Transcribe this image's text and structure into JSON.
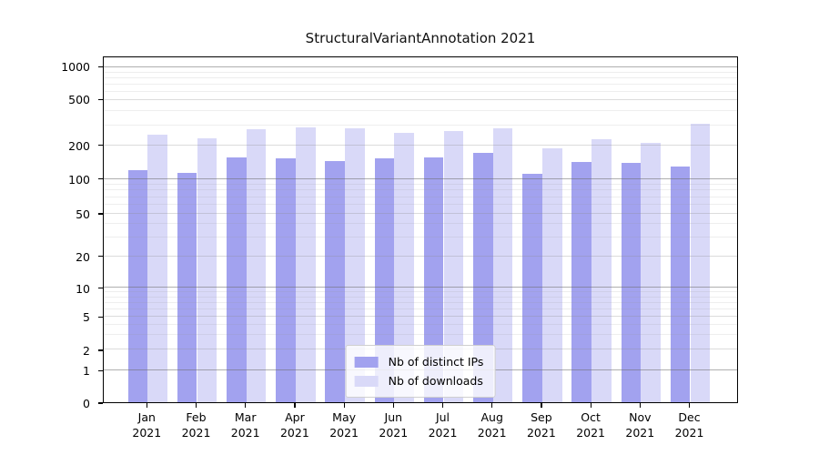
{
  "chart_data": {
    "type": "bar",
    "title": "StructuralVariantAnnotation 2021",
    "categories": [
      "Jan",
      "Feb",
      "Mar",
      "Apr",
      "May",
      "Jun",
      "Jul",
      "Aug",
      "Sep",
      "Oct",
      "Nov",
      "Dec"
    ],
    "year_label": "2021",
    "series": [
      {
        "name": "Nb of distinct IPs",
        "values": [
          118,
          112,
          152,
          150,
          141,
          149,
          153,
          168,
          109,
          139,
          136,
          127
        ]
      },
      {
        "name": "Nb of downloads",
        "values": [
          243,
          226,
          272,
          281,
          278,
          252,
          260,
          277,
          183,
          220,
          207,
          300
        ]
      }
    ],
    "yscale": "symlog",
    "ylim": [
      0,
      1236
    ],
    "y_ticks": [
      {
        "value": 0,
        "pos": 0.0
      },
      {
        "value": 1,
        "pos": 0.0937
      },
      {
        "value": 2,
        "pos": 0.1522
      },
      {
        "value": 5,
        "pos": 0.2485
      },
      {
        "value": 10,
        "pos": 0.3315
      },
      {
        "value": 20,
        "pos": 0.4234
      },
      {
        "value": 50,
        "pos": 0.5459
      },
      {
        "value": 100,
        "pos": 0.6464
      },
      {
        "value": 200,
        "pos": 0.7435
      },
      {
        "value": 500,
        "pos": 0.8758
      },
      {
        "value": 1000,
        "pos": 0.9703
      }
    ],
    "y_minor_gridlines": [
      3,
      4,
      6,
      7,
      8,
      9,
      30,
      40,
      60,
      70,
      80,
      90,
      300,
      400,
      600,
      700,
      800,
      900
    ],
    "grid": true,
    "legend_position": "lower center"
  },
  "legend": {
    "items": [
      {
        "label": "Nb of distinct IPs",
        "series": "ips"
      },
      {
        "label": "Nb of downloads",
        "series": "dl"
      }
    ]
  },
  "colors": {
    "distinct_ips": "#a2a2ef",
    "downloads": "#d9d9f8",
    "axis": "#000000",
    "text": "#111111"
  }
}
